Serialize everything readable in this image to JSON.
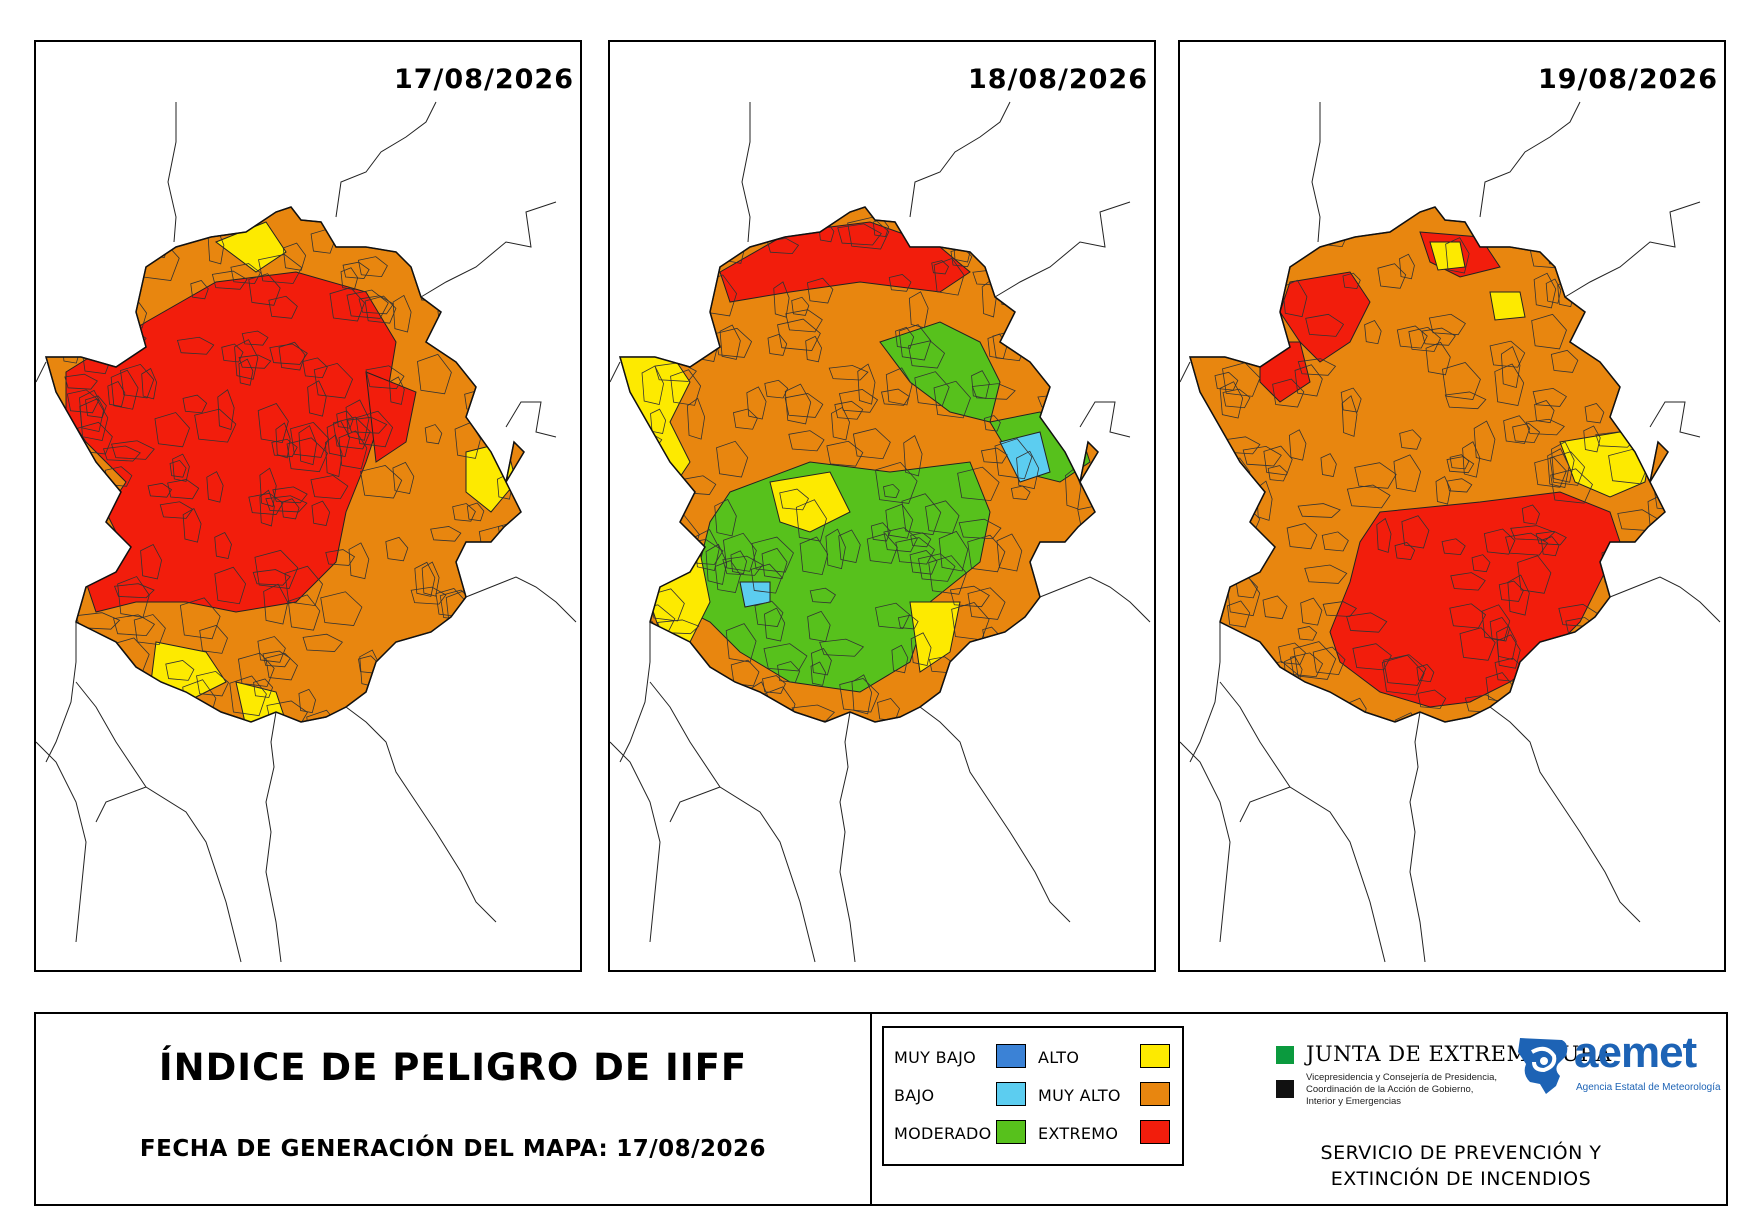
{
  "maps": [
    {
      "date": "17/08/2026",
      "levels": [
        "EXTREMO",
        "MUY ALTO",
        "MUY ALTO"
      ],
      "minor": "ALTO"
    },
    {
      "date": "18/08/2026",
      "levels": [
        "MUY ALTO",
        "ALTO",
        "MODERADO"
      ],
      "minor": "BAJO"
    },
    {
      "date": "19/08/2026",
      "levels": [
        "MUY ALTO",
        "EXTREMO",
        "MUY ALTO"
      ],
      "minor": "ALTO"
    }
  ],
  "footer": {
    "title": "ÍNDICE DE PELIGRO DE IIFF",
    "generation_label": "FECHA DE GENERACIÓN DEL MAPA:",
    "generation_date": "17/08/2026"
  },
  "legend": {
    "items": [
      {
        "label": "MUY BAJO",
        "color": "#3b82d6"
      },
      {
        "label": "BAJO",
        "color": "#5ccdf0"
      },
      {
        "label": "MODERADO",
        "color": "#57c11c"
      },
      {
        "label": "ALTO",
        "color": "#fdea00"
      },
      {
        "label": "MUY ALTO",
        "color": "#e8860f"
      },
      {
        "label": "EXTREMO",
        "color": "#f21d0c"
      }
    ]
  },
  "logos": {
    "junta_name": "JUNTA DE EXTREMADURA",
    "junta_sub1": "Vicepresidencia y Consejería de Presidencia,",
    "junta_sub2": "Coordinación de la Acción de Gobierno,",
    "junta_sub3": "Interior y Emergencias",
    "aemet_name": "aemet",
    "aemet_sub": "Agencia Estatal de Meteorología"
  },
  "service": {
    "line1": "SERVICIO DE PREVENCIÓN Y",
    "line2": "EXTINCIÓN DE INCENDIOS"
  }
}
